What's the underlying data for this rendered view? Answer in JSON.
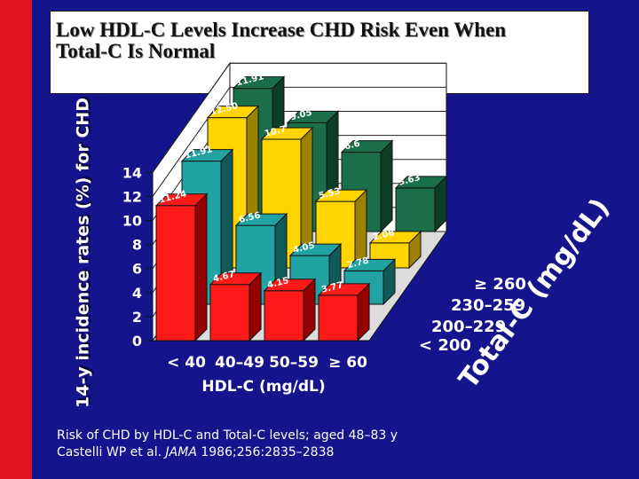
{
  "title": {
    "line1": "Low HDL-C Levels Increase CHD Risk Even When",
    "line2": "Total-C Is Normal"
  },
  "caption": {
    "line1": "Risk of CHD by HDL-C and Total-C levels; aged 48–83 y",
    "line2_author": "Castelli WP et al. ",
    "line2_journal": "JAMA",
    "line2_citation": " 1986;256:2835–2838"
  },
  "colors": {
    "background": "#14148c",
    "accent_strip": "#e0141e",
    "series": [
      "#ff1a1a",
      "#22a3a3",
      "#ffd400",
      "#1b6e4a"
    ],
    "series_dark": [
      "#960000",
      "#105a5a",
      "#9c8200",
      "#0d3d27"
    ]
  },
  "chart_data": {
    "type": "bar",
    "subtype": "3d-grouped",
    "title": "Low HDL-C Levels Increase CHD Risk Even When Total-C Is Normal",
    "ylabel": "14-y incidence rates (%) for CHD",
    "xlabel": "HDL-C (mg/dL)",
    "zlabel": "Total-C (mg/dL)",
    "ylim": [
      0,
      14
    ],
    "yticks": [
      0,
      2,
      4,
      6,
      8,
      10,
      12,
      14
    ],
    "grid": true,
    "categories": [
      "< 40",
      "40–49",
      "50–59",
      "≥ 60"
    ],
    "series": [
      {
        "name": "< 200",
        "values": [
          11.24,
          4.67,
          4.15,
          3.77
        ]
      },
      {
        "name": "200–229",
        "values": [
          11.91,
          6.56,
          4.05,
          2.78
        ]
      },
      {
        "name": "230–259",
        "values": [
          12.5,
          10.7,
          5.53,
          2.08
        ]
      },
      {
        "name": "≥ 260",
        "values": [
          11.91,
          9.05,
          6.6,
          3.63
        ]
      }
    ],
    "data_labels": [
      [
        "11.24",
        "4.67",
        "4.15",
        "3.77"
      ],
      [
        "11.91",
        "6.56",
        "4.05",
        "2.78"
      ],
      [
        "12.50",
        "10.7",
        "5.53",
        "2.08"
      ],
      [
        "11.91",
        "9.05",
        "6.6",
        "3.63"
      ]
    ]
  }
}
